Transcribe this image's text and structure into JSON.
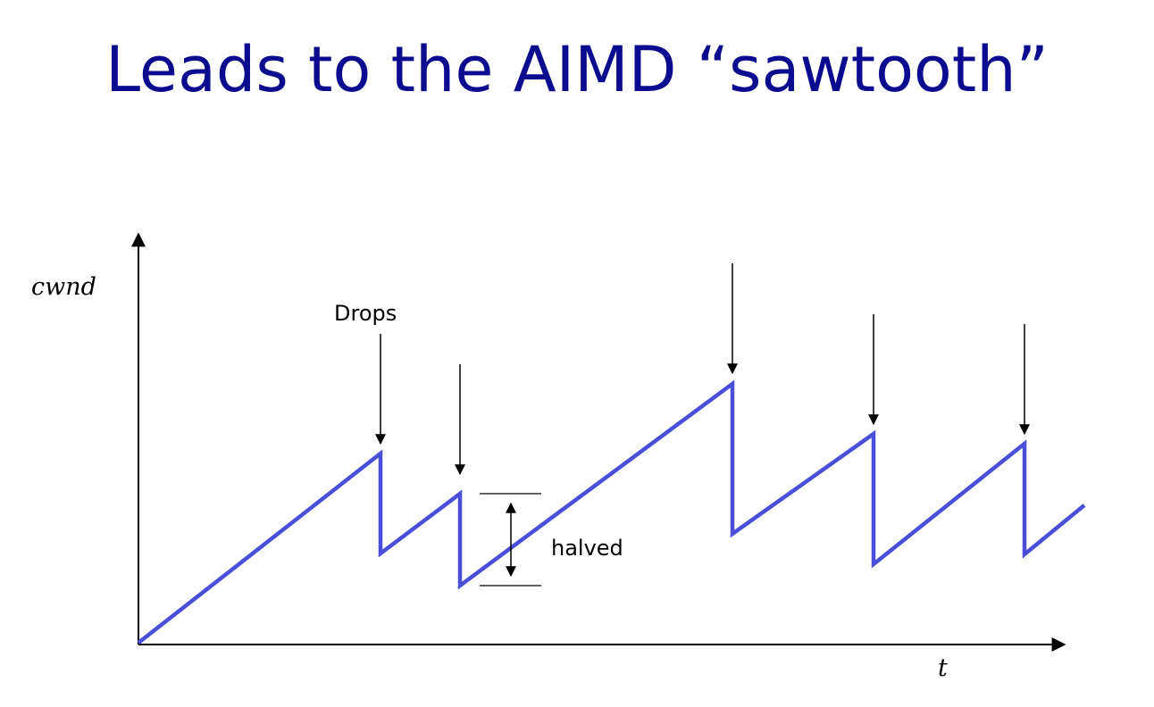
{
  "slide": {
    "title": "Leads to the AIMD “sawtooth”"
  },
  "diagram": {
    "y_axis_label": "cwnd",
    "x_axis_label": "t",
    "drops_label": "Drops",
    "halved_label": "halved",
    "line_color": "#4a4fd9",
    "title_color": "#0b0b8f"
  }
}
